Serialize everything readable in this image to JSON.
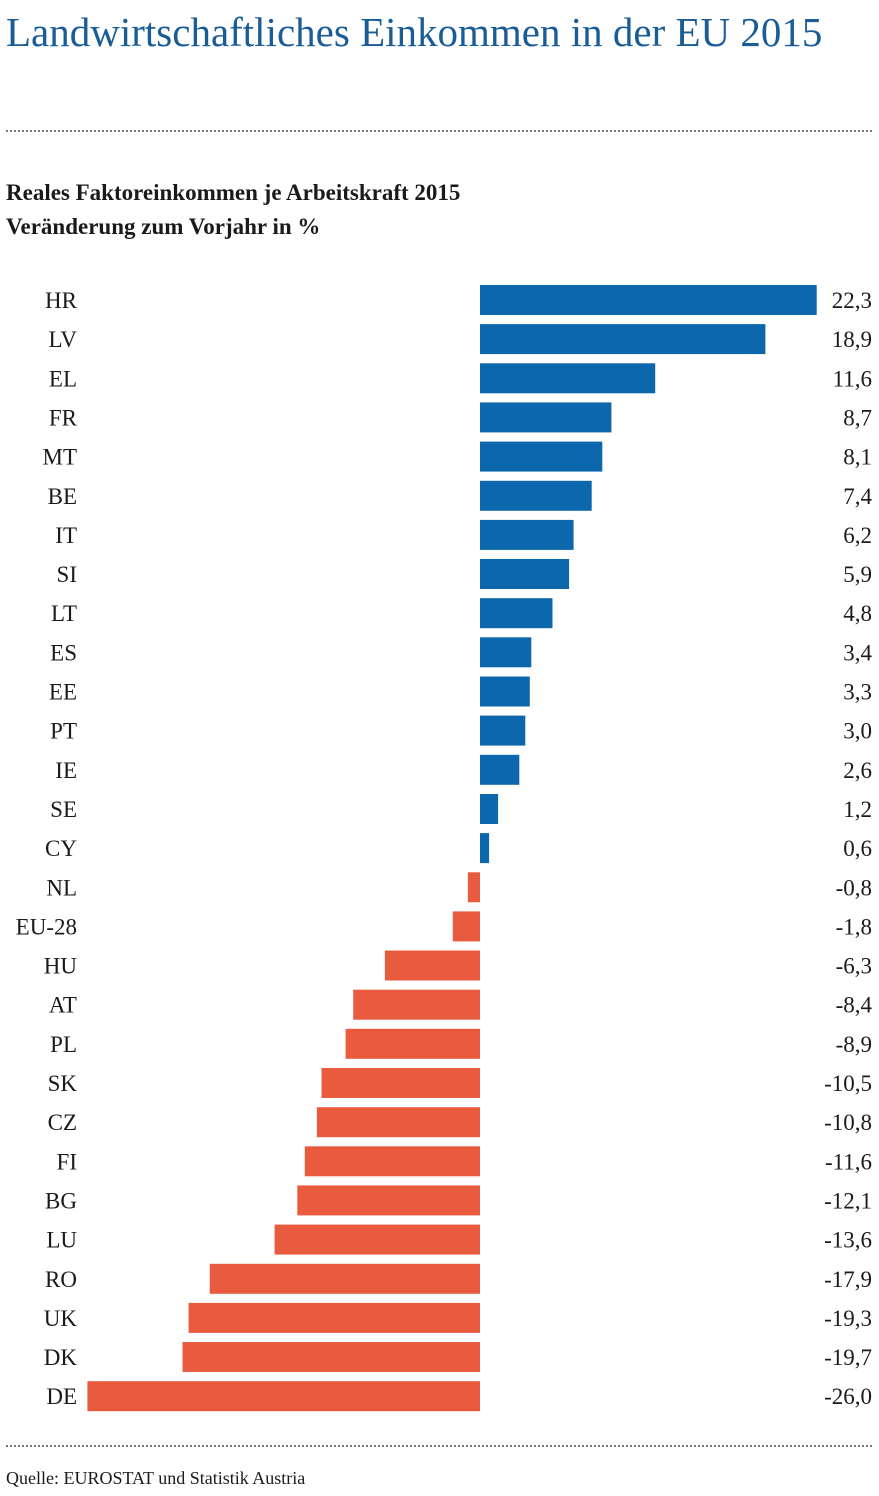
{
  "header": {
    "title": "Landwirtschaftliches Einkommen in der EU 2015"
  },
  "footer": {
    "source": "Quelle: EUROSTAT und Statistik Austria"
  },
  "colors": {
    "positive": "#0d67ad",
    "negative": "#e95b3f",
    "title": "#1a5c96"
  },
  "chart_data": {
    "type": "bar",
    "orientation": "horizontal",
    "title": "Reales Faktoreinkommen je Arbeitskraft 2015",
    "subtitle": "Veränderung zum Vorjahr in %",
    "xlabel": "",
    "ylabel": "",
    "xlim": [
      -26.0,
      22.3
    ],
    "grid": false,
    "legend": "none",
    "categories": [
      "HR",
      "LV",
      "EL",
      "FR",
      "MT",
      "BE",
      "IT",
      "SI",
      "LT",
      "ES",
      "EE",
      "PT",
      "IE",
      "SE",
      "CY",
      "NL",
      "EU-28",
      "HU",
      "AT",
      "PL",
      "SK",
      "CZ",
      "FI",
      "BG",
      "LU",
      "RO",
      "UK",
      "DK",
      "DE"
    ],
    "values": [
      22.3,
      18.9,
      11.6,
      8.7,
      8.1,
      7.4,
      6.2,
      5.9,
      4.8,
      3.4,
      3.3,
      3.0,
      2.6,
      1.2,
      0.6,
      -0.8,
      -1.8,
      -6.3,
      -8.4,
      -8.9,
      -10.5,
      -10.8,
      -11.6,
      -12.1,
      -13.6,
      -17.9,
      -19.3,
      -19.7,
      -26.0
    ],
    "value_labels": [
      "22,3",
      "18,9",
      "11,6",
      "8,7",
      "8,1",
      "7,4",
      "6,2",
      "5,9",
      "4,8",
      "3,4",
      "3,3",
      "3,0",
      "2,6",
      "1,2",
      "0,6",
      "-0,8",
      "-1,8",
      "-6,3",
      "-8,4",
      "-8,9",
      "-10,5",
      "-10,8",
      "-11,6",
      "-12,1",
      "-13,6",
      "-17,9",
      "-19,3",
      "-19,7",
      "-26,0"
    ]
  }
}
